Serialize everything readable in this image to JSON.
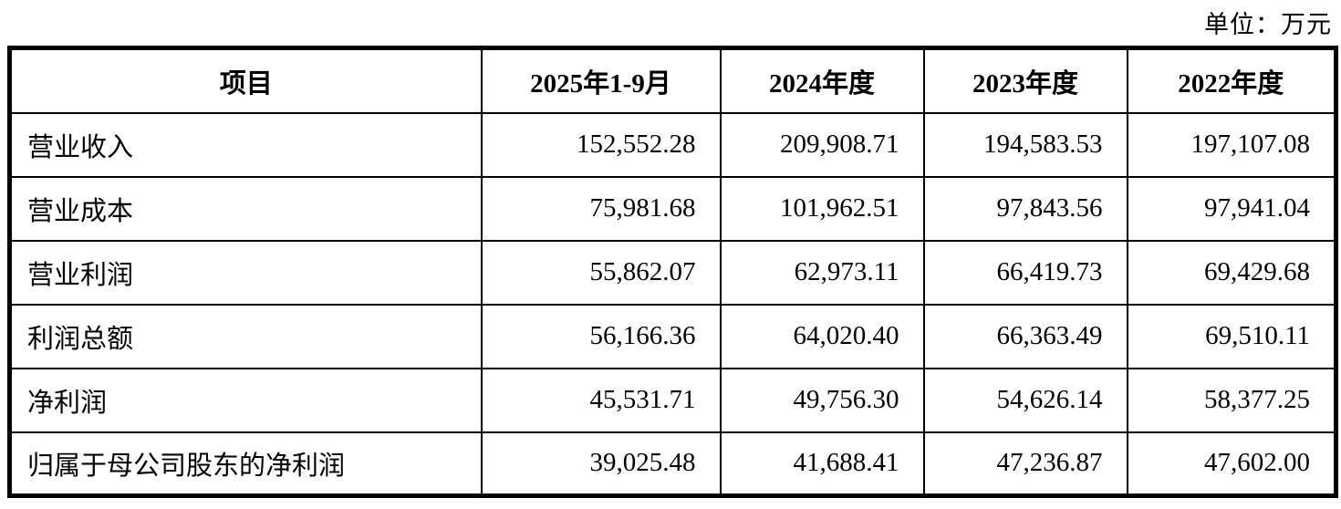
{
  "unit_label": "单位：万元",
  "table": {
    "headers": [
      "项目",
      "2025年1-9月",
      "2024年度",
      "2023年度",
      "2022年度"
    ],
    "rows": [
      {
        "label": "营业收入",
        "values": [
          "152,552.28",
          "209,908.71",
          "194,583.53",
          "197,107.08"
        ]
      },
      {
        "label": "营业成本",
        "values": [
          "75,981.68",
          "101,962.51",
          "97,843.56",
          "97,941.04"
        ]
      },
      {
        "label": "营业利润",
        "values": [
          "55,862.07",
          "62,973.11",
          "66,419.73",
          "69,429.68"
        ]
      },
      {
        "label": "利润总额",
        "values": [
          "56,166.36",
          "64,020.40",
          "66,363.49",
          "69,510.11"
        ]
      },
      {
        "label": "净利润",
        "values": [
          "45,531.71",
          "49,756.30",
          "54,626.14",
          "58,377.25"
        ]
      },
      {
        "label": "归属于母公司股东的净利润",
        "values": [
          "39,025.48",
          "41,688.41",
          "47,236.87",
          "47,602.00"
        ]
      }
    ]
  }
}
